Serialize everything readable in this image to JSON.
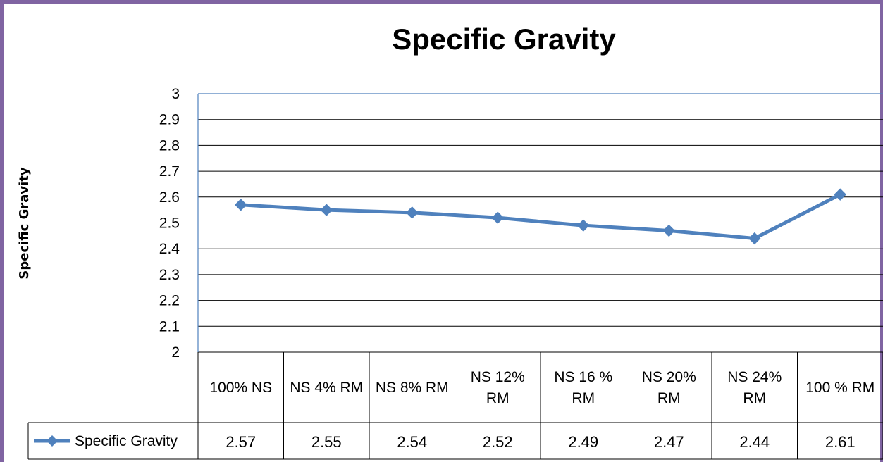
{
  "chart_data": {
    "type": "line",
    "title": "Specific Gravity",
    "xlabel": "",
    "ylabel": "Specific Gravity",
    "ylim": [
      2,
      3
    ],
    "y_ticks": [
      "2",
      "2.1",
      "2.2",
      "2.3",
      "2.4",
      "2.5",
      "2.6",
      "2.7",
      "2.8",
      "2.9",
      "3"
    ],
    "categories": [
      [
        "100% NS"
      ],
      [
        "NS 4% RM"
      ],
      [
        "NS 8% RM"
      ],
      [
        "NS 12%",
        "RM"
      ],
      [
        "NS 16 %",
        "RM"
      ],
      [
        "NS 20%",
        "RM"
      ],
      [
        "NS 24%",
        "RM"
      ],
      [
        "100 % RM"
      ]
    ],
    "series": [
      {
        "name": "Specific Gravity",
        "values": [
          2.57,
          2.55,
          2.54,
          2.52,
          2.49,
          2.47,
          2.44,
          2.61
        ],
        "value_labels": [
          "2.57",
          "2.55",
          "2.54",
          "2.52",
          "2.49",
          "2.47",
          "2.44",
          "2.61"
        ]
      }
    ],
    "grid": true,
    "legend": "data-table-left",
    "colors": {
      "series": "#4f81bd",
      "grid": "#000000",
      "plot_border": "#4f81bd",
      "frame": "#8064a2"
    }
  }
}
